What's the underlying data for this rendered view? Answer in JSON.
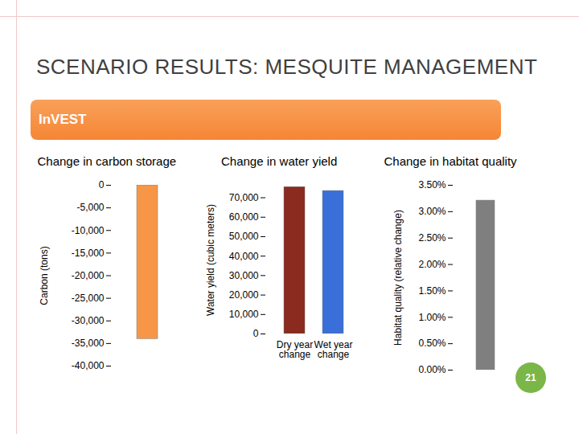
{
  "slide": {
    "title": "SCENARIO RESULTS: MESQUITE MANAGEMENT",
    "banner": "InVEST",
    "page_number": 21
  },
  "chart_data": [
    {
      "type": "bar",
      "title": "Change in carbon storage",
      "y_label": "Carbon (tons)",
      "categories": [
        null
      ],
      "values": [
        -34000
      ],
      "color": "#f79646",
      "ylim": [
        -40000,
        0
      ],
      "yticks": [
        0,
        {
          "value": -5000,
          "label": "-5,000"
        },
        {
          "value": -10000,
          "label": "-10,000"
        },
        {
          "value": -15000,
          "label": "-15,000"
        },
        {
          "value": -20000,
          "label": "-20,000"
        },
        {
          "value": -25000,
          "label": "-25,000"
        },
        {
          "value": -30000,
          "label": "-30,000"
        },
        {
          "value": -35000,
          "label": "-35,000"
        },
        {
          "value": -40000,
          "label": "-40,000"
        }
      ],
      "tick_labels": "y"
    },
    {
      "type": "bar",
      "title": "Change in water yield",
      "y_label": "Water yield (cubic meters)",
      "categories": [
        "Dry year change",
        "Wet year change"
      ],
      "values": [
        75500,
        73500
      ],
      "colors": [
        "#8b2a1f",
        "#3a6fd9"
      ],
      "ylim": [
        0,
        76000
      ],
      "yticks": [
        0,
        {
          "value": 10000,
          "label": "10,000"
        },
        {
          "value": 20000,
          "label": "20,000"
        },
        {
          "value": 30000,
          "label": "30,000"
        },
        {
          "value": 40000,
          "label": "40,000"
        },
        {
          "value": 50000,
          "label": "50,000"
        },
        {
          "value": 60000,
          "label": "60,000"
        },
        {
          "value": 70000,
          "label": "70,000"
        }
      ]
    },
    {
      "type": "bar",
      "title": "Change in habitat quality",
      "y_label": "Habitat quality (relative change)",
      "categories": [
        null
      ],
      "values": [
        3.21
      ],
      "color": "#7f7f7f",
      "ylim": [
        0,
        3.5
      ],
      "yticks": [
        {
          "value": 0,
          "label": "0.00%"
        },
        {
          "value": 0.5,
          "label": "0.50%"
        },
        {
          "value": 1,
          "label": "1.00%"
        },
        {
          "value": 1.5,
          "label": "1.50%"
        },
        {
          "value": 2,
          "label": "2.00%"
        },
        {
          "value": 2.5,
          "label": "2.50%"
        },
        {
          "value": 3,
          "label": "3.00%"
        },
        {
          "value": 3.5,
          "label": "3.50%"
        }
      ],
      "tick_labels": "y"
    }
  ]
}
